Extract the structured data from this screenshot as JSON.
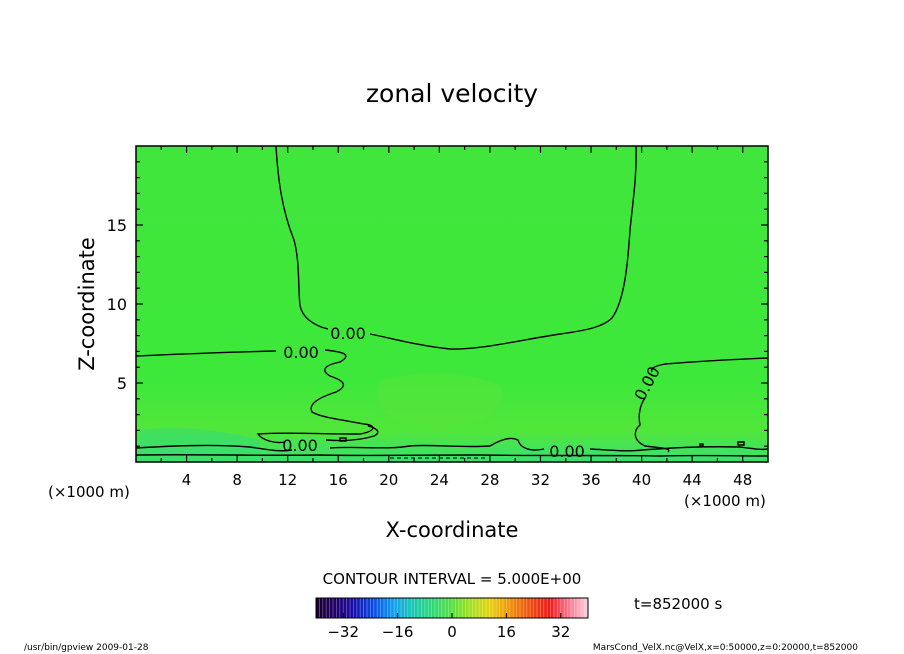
{
  "chart_data": {
    "type": "heatmap",
    "title": "zonal velocity",
    "xlabel": "X-coordinate",
    "ylabel": "Z-coordinate",
    "x_unit_left": "(×1000 m)",
    "x_unit_right": "(×1000 m)",
    "xlim": [
      0,
      50
    ],
    "ylim": [
      0,
      20
    ],
    "xticks": [
      4,
      8,
      12,
      16,
      20,
      24,
      28,
      32,
      36,
      40,
      44,
      48
    ],
    "yticks": [
      5,
      10,
      15
    ],
    "contour_interval_text": "CONTOUR INTERVAL = 5.000E+00",
    "contour_labels": [
      "0.00",
      "0.00",
      "0.00",
      "0.00",
      "0.00"
    ],
    "colorbar": {
      "range": [
        -40,
        40
      ],
      "ticks": [
        -32,
        -16,
        0,
        16,
        32
      ],
      "colors": [
        "#180028",
        "#20006a",
        "#1810b0",
        "#0850e8",
        "#10a0f0",
        "#18c8b0",
        "#30d878",
        "#58e040",
        "#a8e020",
        "#e8d010",
        "#f09008",
        "#f05010",
        "#f01818",
        "#f87890",
        "#ffd0e0"
      ]
    },
    "time_label": "t=852000 s",
    "footer_left": "/usr/bin/gpview  2009-01-28",
    "footer_right": "MarsCond_VelX.nc@VelX,x=0:50000,z=0:20000,t=852000",
    "field_color": "#3ee83a"
  }
}
